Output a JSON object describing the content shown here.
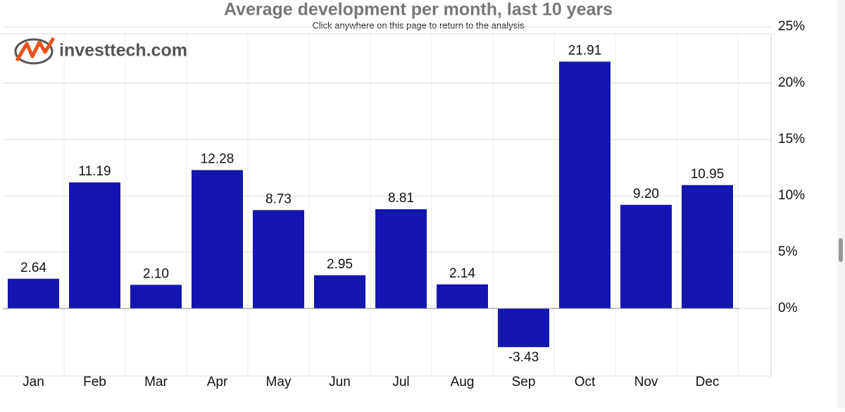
{
  "chart_data": {
    "type": "bar",
    "title": "Average development per month, last 10 years",
    "subtitle": "Click anywhere on this page to return to the analysis",
    "logo": "investtech.com",
    "categories": [
      "Jan",
      "Feb",
      "Mar",
      "Apr",
      "May",
      "Jun",
      "Jul",
      "Aug",
      "Sep",
      "Oct",
      "Nov",
      "Dec"
    ],
    "values": [
      2.64,
      11.19,
      2.1,
      12.28,
      8.73,
      2.95,
      8.81,
      2.14,
      -3.43,
      21.91,
      9.2,
      10.95
    ],
    "value_labels": [
      "2.64",
      "11.19",
      "2.10",
      "12.28",
      "8.73",
      "2.95",
      "8.81",
      "2.14",
      "-3.43",
      "21.91",
      "9.20",
      "10.95"
    ],
    "color": "#1515b0",
    "ylim": [
      -6,
      25
    ],
    "yticks": [
      {
        "value": 0,
        "label": "0%"
      },
      {
        "value": 5,
        "label": "5%"
      },
      {
        "value": 10,
        "label": "10%"
      },
      {
        "value": 15,
        "label": "15%"
      },
      {
        "value": 20,
        "label": "20%"
      },
      {
        "value": 25,
        "label": "25%"
      }
    ],
    "y_axis_side": "right",
    "grid": true
  }
}
